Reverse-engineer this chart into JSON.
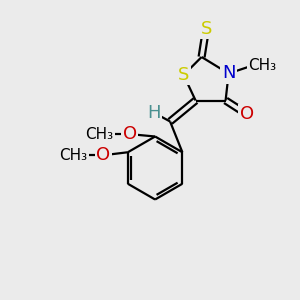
{
  "background_color": "#ebebeb",
  "bond_color": "#000000",
  "atom_colors": {
    "S_thione": "#cccc00",
    "S_ring": "#cccc00",
    "N": "#0000cc",
    "O": "#cc0000",
    "H": "#4a9090",
    "C": "#000000"
  },
  "font_size_large": 13,
  "font_size_small": 11,
  "line_width": 1.6,
  "figsize": [
    3.0,
    3.0
  ],
  "dpi": 100,
  "xlim": [
    0,
    10
  ],
  "ylim": [
    0,
    10
  ]
}
